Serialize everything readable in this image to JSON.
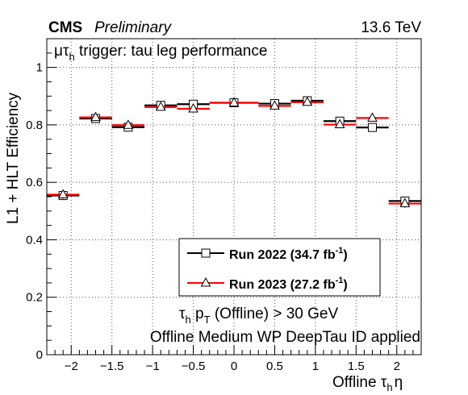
{
  "header": {
    "experiment": "CMS",
    "status": "Preliminary",
    "energy": "13.6 TeV"
  },
  "chart_data": {
    "type": "scatter",
    "title": "",
    "ylabel": "L1 + HLT Efficiency",
    "xlabel_prefix": "Offline ",
    "xlabel_tau": "τ",
    "xlabel_sub": "h",
    "xlabel_eta": "η",
    "xlim": [
      -2.3,
      2.3
    ],
    "ylim": [
      0,
      1.1
    ],
    "x_ticks": [
      -2,
      -1.5,
      -1,
      -0.5,
      0,
      0.5,
      1,
      1.5,
      2
    ],
    "x_tick_labels": [
      "−2",
      "−1.5",
      "−1",
      "−0.5",
      "0",
      "0.5",
      "1",
      "1.5",
      "2"
    ],
    "y_ticks": [
      0,
      0.2,
      0.4,
      0.6,
      0.8,
      1
    ],
    "y_tick_labels": [
      "0",
      "0.2",
      "0.4",
      "0.6",
      "0.8",
      "1"
    ],
    "grid": true,
    "annotation_channel": {
      "mu": "μ",
      "tau": "τ",
      "sub": "h",
      "text": " trigger: tau leg performance"
    },
    "annotation_cut": {
      "tau": "τ",
      "sub_h": "h",
      "p": " p",
      "sub_T": "T",
      "text": " (Offline) > 30 GeV"
    },
    "annotation_id": "Offline Medium WP DeepTau ID applied",
    "legend_position": "bottom-right",
    "series": [
      {
        "name_main": "Run 2022 (34.7 fb",
        "name_sup": "-1",
        "name_end": ")",
        "color": "#000000",
        "marker": "open-square",
        "bins": [
          {
            "xlow": -2.3,
            "xhigh": -1.9,
            "y": 0.554,
            "err": 0.012
          },
          {
            "xlow": -1.9,
            "xhigh": -1.5,
            "y": 0.822,
            "err": 0.006
          },
          {
            "xlow": -1.5,
            "xhigh": -1.1,
            "y": 0.792,
            "err": 0.006
          },
          {
            "xlow": -1.1,
            "xhigh": -0.7,
            "y": 0.868,
            "err": 0.005
          },
          {
            "xlow": -0.7,
            "xhigh": -0.3,
            "y": 0.872,
            "err": 0.005
          },
          {
            "xlow": -0.3,
            "xhigh": 0.3,
            "y": 0.877,
            "err": 0.004
          },
          {
            "xlow": 0.3,
            "xhigh": 0.7,
            "y": 0.874,
            "err": 0.005
          },
          {
            "xlow": 0.7,
            "xhigh": 1.1,
            "y": 0.884,
            "err": 0.005
          },
          {
            "xlow": 1.1,
            "xhigh": 1.5,
            "y": 0.813,
            "err": 0.006
          },
          {
            "xlow": 1.5,
            "xhigh": 1.9,
            "y": 0.791,
            "err": 0.006
          },
          {
            "xlow": 1.9,
            "xhigh": 2.3,
            "y": 0.535,
            "err": 0.012
          }
        ]
      },
      {
        "name_main": "Run 2023 (27.2 fb",
        "name_sup": "-1",
        "name_end": ")",
        "color": "#ff0000",
        "marker": "open-triangle",
        "bins": [
          {
            "xlow": -2.3,
            "xhigh": -1.9,
            "y": 0.557,
            "err": 0.014
          },
          {
            "xlow": -1.9,
            "xhigh": -1.5,
            "y": 0.826,
            "err": 0.007
          },
          {
            "xlow": -1.5,
            "xhigh": -1.1,
            "y": 0.799,
            "err": 0.007
          },
          {
            "xlow": -1.1,
            "xhigh": -0.7,
            "y": 0.862,
            "err": 0.006
          },
          {
            "xlow": -0.7,
            "xhigh": -0.3,
            "y": 0.856,
            "err": 0.006
          },
          {
            "xlow": -0.3,
            "xhigh": 0.3,
            "y": 0.877,
            "err": 0.005
          },
          {
            "xlow": 0.3,
            "xhigh": 0.7,
            "y": 0.866,
            "err": 0.006
          },
          {
            "xlow": 0.7,
            "xhigh": 1.1,
            "y": 0.879,
            "err": 0.006
          },
          {
            "xlow": 1.1,
            "xhigh": 1.5,
            "y": 0.801,
            "err": 0.007
          },
          {
            "xlow": 1.5,
            "xhigh": 1.9,
            "y": 0.824,
            "err": 0.007
          },
          {
            "xlow": 1.9,
            "xhigh": 2.3,
            "y": 0.526,
            "err": 0.014
          }
        ]
      }
    ]
  }
}
